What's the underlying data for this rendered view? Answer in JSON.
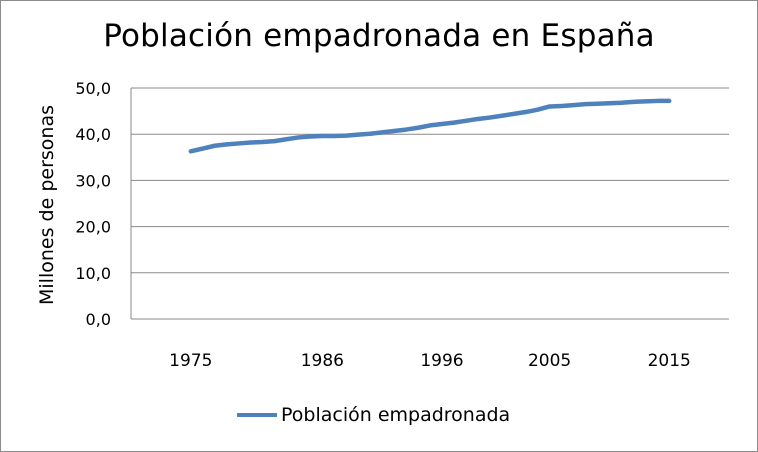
{
  "chart_data": {
    "type": "line",
    "title": "Población empadronada en España",
    "ylabel": "Millones de personas",
    "xlabel": "",
    "xlim": [
      1970,
      2020
    ],
    "ylim": [
      0,
      50
    ],
    "y_ticks": [
      "0,0",
      "10,0",
      "20,0",
      "30,0",
      "40,0",
      "50,0"
    ],
    "x_tick_years": [
      1975,
      1986,
      1996,
      2005,
      2015
    ],
    "x_ticks": [
      "1975",
      "1986",
      "1996",
      "2005",
      "2015"
    ],
    "grid": "horizontal",
    "legend_position": "bottom",
    "series": [
      {
        "name": "Población empadronada",
        "color": "#4f81bd",
        "x": [
          1975,
          1976,
          1977,
          1978,
          1979,
          1980,
          1981,
          1982,
          1983,
          1984,
          1985,
          1986,
          1987,
          1988,
          1989,
          1990,
          1991,
          1992,
          1993,
          1994,
          1995,
          1996,
          1997,
          1998,
          1999,
          2000,
          2001,
          2002,
          2003,
          2004,
          2005,
          2006,
          2007,
          2008,
          2009,
          2010,
          2011,
          2012,
          2013,
          2014,
          2015
        ],
        "values": [
          36.3,
          36.9,
          37.5,
          37.8,
          38.0,
          38.2,
          38.3,
          38.5,
          38.9,
          39.3,
          39.5,
          39.6,
          39.6,
          39.7,
          39.9,
          40.1,
          40.4,
          40.7,
          41.0,
          41.4,
          41.9,
          42.2,
          42.5,
          42.9,
          43.3,
          43.6,
          44.0,
          44.4,
          44.8,
          45.3,
          46.0,
          46.1,
          46.3,
          46.5,
          46.6,
          46.7,
          46.8,
          47.0,
          47.1,
          47.2,
          47.2
        ]
      }
    ]
  }
}
